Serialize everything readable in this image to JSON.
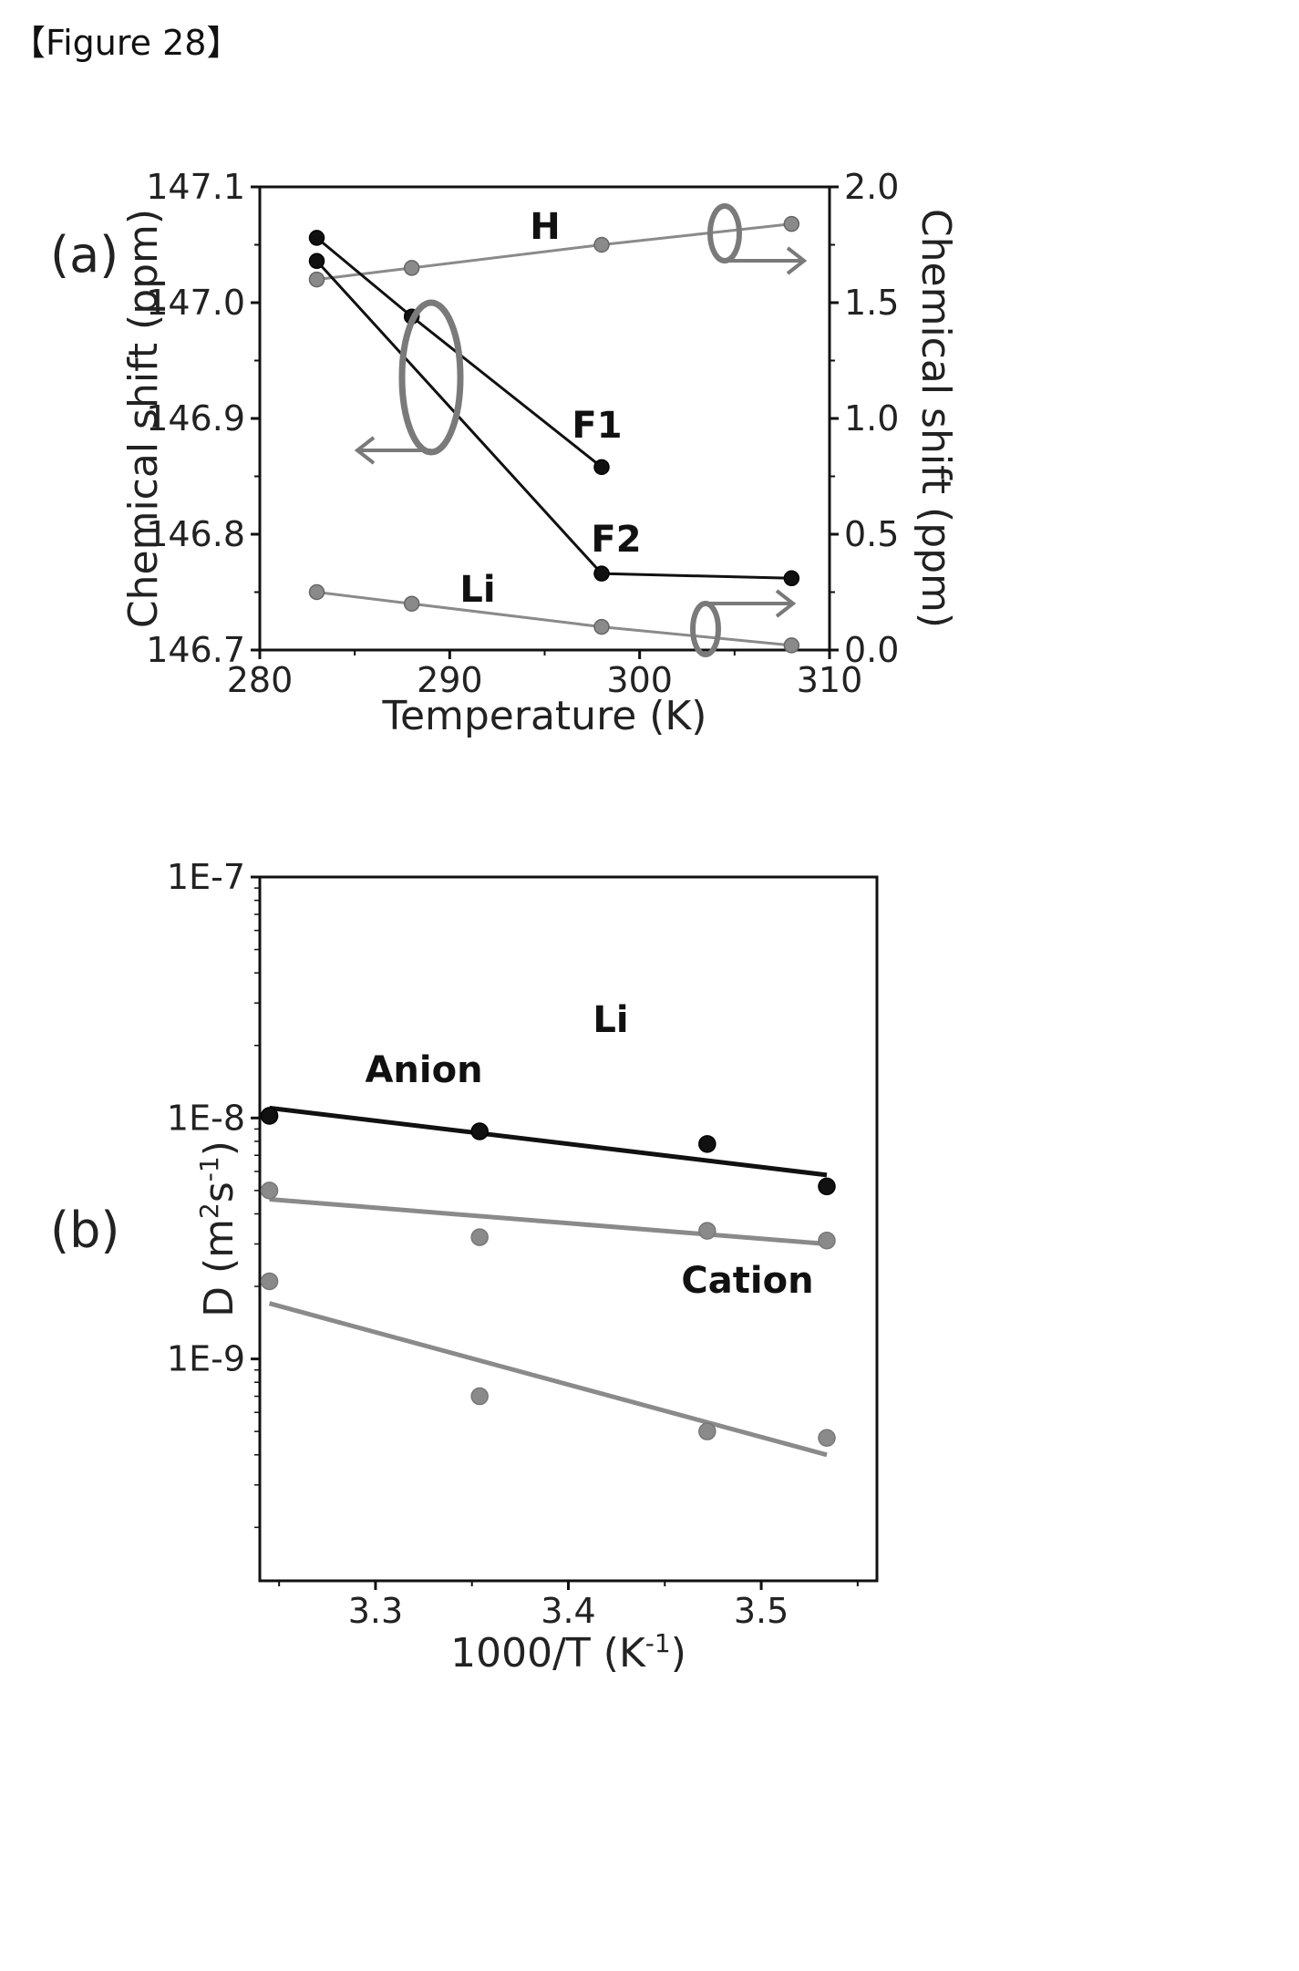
{
  "figure_caption": "【Figure 28】",
  "chart_data": [
    {
      "panel": "(a)",
      "type": "line",
      "xlabel": "Temperature (K)",
      "ylabel_left": "Chemical shift (ppm)",
      "ylabel_right": "Chemical shift (ppm)",
      "xlim": [
        280,
        310
      ],
      "ylim_left": [
        146.7,
        147.1
      ],
      "ylim_right": [
        0.0,
        2.0
      ],
      "x_ticks": [
        "280",
        "290",
        "300",
        "310"
      ],
      "y_ticks_left": [
        "146.7",
        "146.8",
        "146.9",
        "147.0",
        "147.1"
      ],
      "y_ticks_right": [
        "0.0",
        "0.5",
        "1.0",
        "1.5",
        "2.0"
      ],
      "series": [
        {
          "name": "H",
          "axis": "right",
          "color": "#8a8a8a",
          "x": [
            283,
            288,
            298,
            308
          ],
          "y": [
            1.6,
            1.65,
            1.75,
            1.84
          ]
        },
        {
          "name": "F1",
          "axis": "left",
          "color": "#111111",
          "x": [
            283,
            288,
            298
          ],
          "y": [
            147.056,
            146.988,
            146.858
          ]
        },
        {
          "name": "F2",
          "axis": "left",
          "color": "#111111",
          "x": [
            283,
            298,
            308
          ],
          "y": [
            147.036,
            146.766,
            146.762
          ]
        },
        {
          "name": "Li",
          "axis": "right",
          "color": "#8a8a8a",
          "x": [
            283,
            288,
            298,
            308
          ],
          "y": [
            0.25,
            0.2,
            0.1,
            0.02
          ]
        }
      ]
    },
    {
      "panel": "(b)",
      "type": "scatter",
      "xlabel": "1000/T (K",
      "xlabel_sup": "-1",
      "xlabel_end": ")",
      "ylabel": "D (m",
      "ylabel_sup1": "2",
      "ylabel_mid": "s",
      "ylabel_sup2": "-1",
      "ylabel_end": ")",
      "xlim": [
        3.24,
        3.56
      ],
      "ylim": [
        1.2e-10,
        1e-07
      ],
      "yscale": "log",
      "x_ticks": [
        "3.3",
        "3.4",
        "3.5"
      ],
      "y_ticks": [
        "1E-7",
        "1E-8",
        "1E-9"
      ],
      "series": [
        {
          "name": "Li",
          "color": "#111111",
          "x": [
            3.245,
            3.354,
            3.472,
            3.534
          ],
          "y": [
            1.02e-08,
            8.8e-09,
            7.8e-09,
            5.2e-09
          ],
          "fit": [
            1.1e-08,
            5.8e-09
          ]
        },
        {
          "name": "Anion",
          "color": "#8a8a8a",
          "x": [
            3.245,
            3.354,
            3.472,
            3.534
          ],
          "y": [
            5e-09,
            3.2e-09,
            3.4e-09,
            3.1e-09
          ],
          "fit": [
            4.6e-09,
            3e-09
          ]
        },
        {
          "name": "Cation",
          "color": "#8a8a8a",
          "x": [
            3.245,
            3.354,
            3.472,
            3.534
          ],
          "y": [
            2.1e-09,
            7e-10,
            5e-10,
            4.7e-10
          ],
          "fit": [
            1.7e-09,
            4e-10
          ]
        }
      ]
    }
  ]
}
